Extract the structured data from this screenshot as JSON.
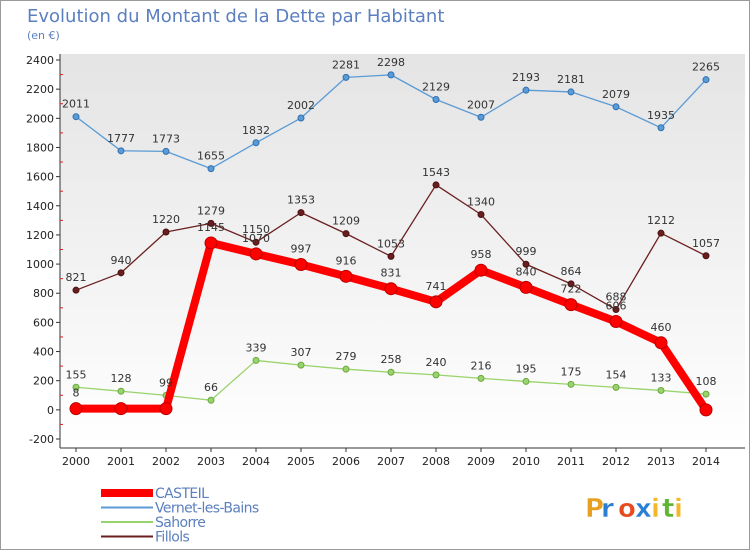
{
  "chart_data": {
    "type": "line",
    "title": "Evolution du Montant de la Dette par Habitant",
    "subtitle": "(en €)",
    "x": [
      2000,
      2001,
      2002,
      2003,
      2004,
      2005,
      2006,
      2007,
      2008,
      2009,
      2010,
      2011,
      2012,
      2013,
      2014
    ],
    "ylim": [
      -200,
      2400
    ],
    "yticks": [
      -200,
      0,
      200,
      400,
      600,
      800,
      1000,
      1200,
      1400,
      1600,
      1800,
      2000,
      2200,
      2400
    ],
    "grid": false,
    "legend_position": "bottom-left",
    "series": [
      {
        "name": "Vernet-les-Bains",
        "color": "#5b9bd5",
        "values": [
          2011,
          1777,
          1773,
          1655,
          1832,
          2002,
          2281,
          2298,
          2129,
          2007,
          2193,
          2181,
          2079,
          1935,
          2265
        ]
      },
      {
        "name": "Fillols",
        "color": "#6b1e1e",
        "values": [
          821,
          940,
          1220,
          1279,
          1150,
          1353,
          1209,
          1053,
          1543,
          1340,
          999,
          864,
          688,
          1212,
          1057
        ]
      },
      {
        "name": "Sahorre",
        "color": "#99d36b",
        "values": [
          155,
          128,
          99,
          66,
          339,
          307,
          279,
          258,
          240,
          216,
          195,
          175,
          154,
          133,
          108
        ]
      },
      {
        "name": "CASTEIL",
        "color": "#ff0000",
        "values": [
          8,
          8,
          8,
          1145,
          1070,
          997,
          916,
          831,
          741,
          958,
          840,
          722,
          606,
          460,
          0
        ]
      }
    ],
    "data_labels": {
      "Vernet-les-Bains": [
        "2011",
        "1777",
        "1773",
        "1655",
        "1832",
        "2002",
        "2281",
        "2298",
        "2129",
        "2007",
        "2193",
        "2181",
        "2079",
        "1935",
        "2265"
      ],
      "Fillols": [
        "821",
        "940",
        "1220",
        "1279",
        "1150",
        "1353",
        "1209",
        "1053",
        "1543",
        "1340",
        "999",
        "864",
        "688",
        "1212",
        "1057"
      ],
      "Sahorre": [
        "155",
        "128",
        "99",
        "66",
        "339",
        "307",
        "279",
        "258",
        "240",
        "216",
        "195",
        "175",
        "154",
        "133",
        "108"
      ],
      "CASTEIL": [
        "8",
        "",
        "",
        "1145",
        "1070",
        "997",
        "916",
        "831",
        "741",
        "958",
        "840",
        "722",
        "606",
        "460",
        ""
      ]
    },
    "legend": [
      "CASTEIL",
      "Vernet-les-Bains",
      "Sahorre",
      "Fillols"
    ]
  },
  "logo": {
    "letters": [
      "P",
      "r",
      "o",
      "x",
      "i",
      "t",
      "i"
    ],
    "colors": [
      "#e8a020",
      "#2a7fd4",
      "#e84a20",
      "#2a7fd4",
      "#f2b82a",
      "#5fb534",
      "#f2b82a"
    ]
  }
}
